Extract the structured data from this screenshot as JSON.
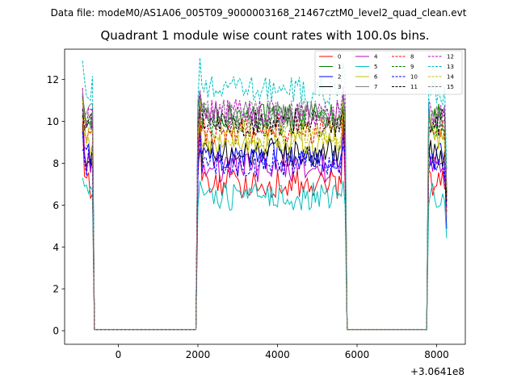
{
  "chart_data": {
    "type": "line",
    "suptitle": "Data file: modeM0/AS1A06_005T09_9000003168_21467cztM0_level2_quad_clean.evt",
    "title": "Quadrant 1 module wise count rates with 100.0s bins.",
    "xlabel": "",
    "ylabel": "",
    "x_offset_label": "+3.0641e8",
    "xlim": [
      -1350,
      8720
    ],
    "ylim": [
      -0.65,
      13.45
    ],
    "x_ticks": [
      0,
      2000,
      4000,
      6000,
      8000
    ],
    "x_tick_labels": [
      "0",
      "2000",
      "4000",
      "6000",
      "8000"
    ],
    "y_ticks": [
      0,
      2,
      4,
      6,
      8,
      10,
      12
    ],
    "y_tick_labels": [
      "0",
      "2",
      "4",
      "6",
      "8",
      "10",
      "12"
    ],
    "legend_position": "top-right",
    "segments": [
      {
        "start": -900,
        "end": -600
      },
      {
        "start": 1950,
        "end": 5750
      },
      {
        "start": 7750,
        "end": 8250
      }
    ],
    "series": [
      {
        "name": "0",
        "color": "#ff0000",
        "dash": "solid",
        "level": 7.0,
        "spike": 9.9
      },
      {
        "name": "1",
        "color": "#008000",
        "dash": "solid",
        "level": 10.2,
        "spike": 11.2
      },
      {
        "name": "2",
        "color": "#0000ff",
        "dash": "solid",
        "level": 8.3,
        "spike": 8.6
      },
      {
        "name": "3",
        "color": "#000000",
        "dash": "solid",
        "level": 8.5,
        "spike": 10.3
      },
      {
        "name": "4",
        "color": "#bf00bf",
        "dash": "solid",
        "level": 7.8,
        "spike": 11.3
      },
      {
        "name": "5",
        "color": "#00bfbf",
        "dash": "solid",
        "level": 6.4,
        "spike": 7.3
      },
      {
        "name": "6",
        "color": "#bfbf00",
        "dash": "solid",
        "level": 9.0,
        "spike": 10.2
      },
      {
        "name": "7",
        "color": "#808080",
        "dash": "solid",
        "level": 10.3,
        "spike": 10.0
      },
      {
        "name": "8",
        "color": "#ff0000",
        "dash": "dashed",
        "level": 9.6,
        "spike": 10.0
      },
      {
        "name": "9",
        "color": "#008000",
        "dash": "dashed",
        "level": 10.0,
        "spike": 11.1
      },
      {
        "name": "10",
        "color": "#0000ff",
        "dash": "dashed",
        "level": 8.0,
        "spike": 9.5
      },
      {
        "name": "11",
        "color": "#000000",
        "dash": "dashed",
        "level": 9.9,
        "spike": 10.6
      },
      {
        "name": "12",
        "color": "#bf00bf",
        "dash": "dashed",
        "level": 10.4,
        "spike": 11.6
      },
      {
        "name": "13",
        "color": "#00bfbf",
        "dash": "dashed",
        "level": 11.5,
        "spike": 12.9
      },
      {
        "name": "14",
        "color": "#bfbf00",
        "dash": "dashed",
        "level": 9.4,
        "spike": 11.0
      },
      {
        "name": "15",
        "color": "#808080",
        "dash": "dashed",
        "level": 10.3,
        "spike": 11.5
      }
    ]
  }
}
